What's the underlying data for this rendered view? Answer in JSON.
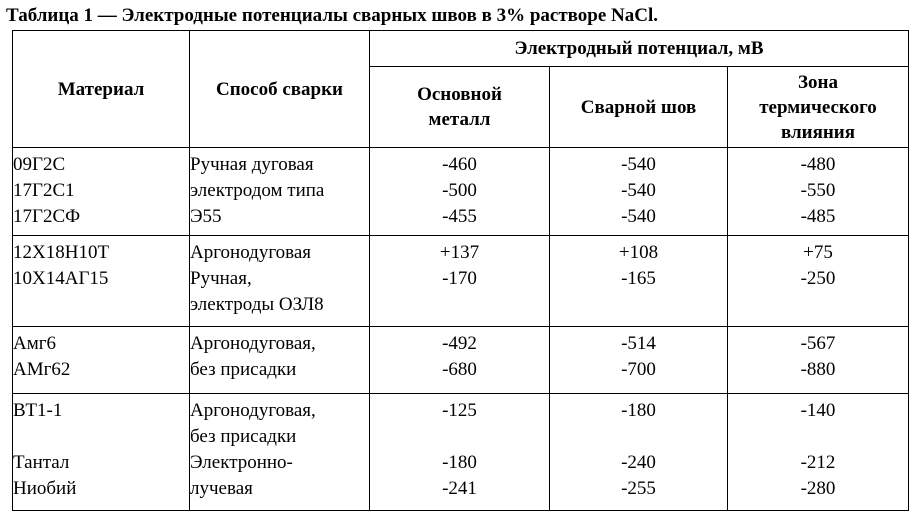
{
  "caption": "Таблица 1 — Электродные потенциалы сварных швов в 3% растворе NaCl.",
  "headers": {
    "material": "Материал",
    "method": "Способ сварки",
    "potential_group": "Электродный потенциал, мВ",
    "base_metal": [
      "Основной",
      "металл"
    ],
    "weld": "Сварной шов",
    "haz": [
      "Зона",
      "термического",
      "влияния"
    ]
  },
  "groups": [
    {
      "materials": [
        "09Г2С",
        "17Г2С1",
        "17Г2СФ"
      ],
      "method": [
        "Ручная дуговая",
        "электродом типа",
        "Э55"
      ],
      "base": [
        "-460",
        "-500",
        "-455"
      ],
      "weld": [
        "-540",
        "-540",
        "-540"
      ],
      "haz": [
        "-480",
        "-550",
        "-485"
      ]
    },
    {
      "materials": [
        "12Х18Н10Т",
        "10Х14АГ15"
      ],
      "method": [
        "Аргонодуговая",
        "Ручная,",
        "электроды ОЗЛ8"
      ],
      "base": [
        "+137",
        "-170"
      ],
      "weld": [
        "+108",
        "-165"
      ],
      "haz": [
        "+75",
        "-250"
      ]
    },
    {
      "materials": [
        "Амг6",
        "АМг62"
      ],
      "method": [
        "Аргонодуговая,",
        "без присадки"
      ],
      "base": [
        "-492",
        "-680"
      ],
      "weld": [
        "-514",
        "-700"
      ],
      "haz": [
        "-567",
        "-880"
      ]
    },
    {
      "materials": [
        "ВТ1-1",
        "",
        "Тантал",
        "Ниобий"
      ],
      "method": [
        "Аргонодуговая,",
        "без присадки",
        "Электронно-",
        "лучевая"
      ],
      "base": [
        "-125",
        "",
        "-180",
        "-241"
      ],
      "weld": [
        "-180",
        "",
        "-240",
        "-255"
      ],
      "haz": [
        "-140",
        "",
        "-212",
        "-280"
      ]
    }
  ]
}
